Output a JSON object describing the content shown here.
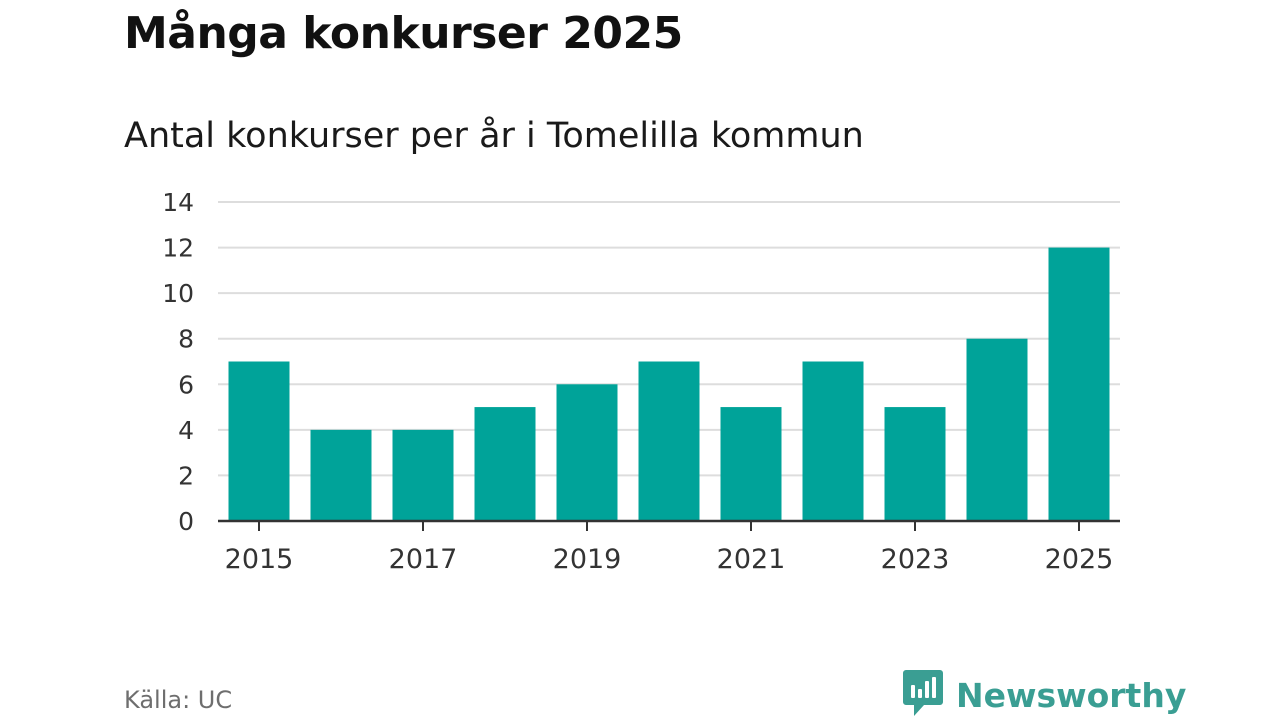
{
  "title": "Många konkurser 2025",
  "subtitle": "Antal konkurser per år i Tomelilla kommun",
  "source": "Källa: UC",
  "brand": {
    "name": "Newsworthy",
    "icon": "newsworthy-logo-icon",
    "color": "#3a9e93"
  },
  "colors": {
    "bar": "#00a399",
    "grid": "#dddddd",
    "axis": "#333333"
  },
  "chart_data": {
    "type": "bar",
    "title": "Antal konkurser per år i Tomelilla kommun",
    "xlabel": "",
    "ylabel": "",
    "categories": [
      "2015",
      "2016",
      "2017",
      "2018",
      "2019",
      "2020",
      "2021",
      "2022",
      "2023",
      "2024",
      "2025"
    ],
    "values": [
      7,
      4,
      4,
      5,
      6,
      7,
      5,
      7,
      5,
      8,
      12
    ],
    "ylim": [
      0,
      14
    ],
    "yticks": [
      0,
      2,
      4,
      6,
      8,
      10,
      12,
      14
    ],
    "xtick_labels": [
      "2015",
      "2017",
      "2019",
      "2021",
      "2023",
      "2025"
    ],
    "grid": true,
    "legend": "none"
  }
}
